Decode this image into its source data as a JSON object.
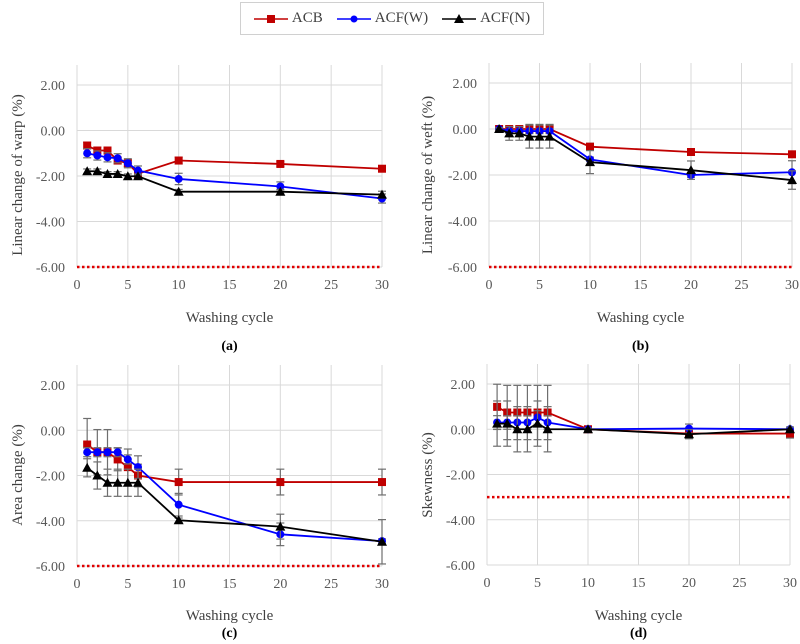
{
  "legend": [
    {
      "name": "ACB",
      "color": "#c00000",
      "marker": "square"
    },
    {
      "name": "ACF(W)",
      "color": "#0000ff",
      "marker": "circle"
    },
    {
      "name": "ACF(N)",
      "color": "#000000",
      "marker": "triangle"
    }
  ],
  "chart_data": [
    {
      "type": "line",
      "panel_label": "(a)",
      "xlabel": "Washing cycle",
      "ylabel": "Linear change of warp (%)",
      "x": [
        1,
        2,
        3,
        4,
        5,
        6,
        10,
        20,
        30
      ],
      "xlim": [
        0,
        30
      ],
      "ylim": [
        -6,
        2
      ],
      "xticks": [
        "0",
        "5",
        "10",
        "15",
        "20",
        "25",
        "30"
      ],
      "yticks": [
        "2.00",
        "0.00",
        "-2.00",
        "-4.00",
        "-6.00"
      ],
      "reference_line": -6,
      "series": [
        {
          "name": "ACB",
          "values": [
            -0.66,
            -0.88,
            -0.88,
            -1.32,
            -1.44,
            -1.9,
            -1.32,
            -1.47,
            -1.68
          ],
          "error": [
            0.15,
            0.15,
            0.15,
            0.15,
            0.15,
            0.15,
            0.15,
            0.1,
            0.1
          ]
        },
        {
          "name": "ACF(W)",
          "values": [
            -1.0,
            -1.1,
            -1.18,
            -1.22,
            -1.44,
            -1.76,
            -2.13,
            -2.46,
            -2.99
          ],
          "error": [
            0.2,
            0.2,
            0.2,
            0.2,
            0.2,
            0.2,
            0.25,
            0.2,
            0.2
          ]
        },
        {
          "name": "ACF(N)",
          "values": [
            -1.79,
            -1.79,
            -1.91,
            -1.91,
            -2.01,
            -2.01,
            -2.69,
            -2.69,
            -2.82
          ],
          "error": [
            0.1,
            0.1,
            0.1,
            0.1,
            0.1,
            0.1,
            0.1,
            0.1,
            0.15
          ]
        }
      ]
    },
    {
      "type": "line",
      "panel_label": "(b)",
      "xlabel": "Washing cycle",
      "ylabel": "Linear change of weft (%)",
      "x": [
        1,
        2,
        3,
        4,
        5,
        6,
        10,
        20,
        30
      ],
      "xlim": [
        0,
        30
      ],
      "ylim": [
        -6,
        2
      ],
      "xticks": [
        "0",
        "5",
        "10",
        "15",
        "20",
        "25",
        "30"
      ],
      "yticks": [
        "2.00",
        "0.00",
        "-2.00",
        "-4.00",
        "-6.00"
      ],
      "reference_line": -6,
      "series": [
        {
          "name": "ACB",
          "values": [
            0,
            0,
            0,
            0,
            0,
            0,
            -0.77,
            -1.0,
            -1.1
          ],
          "error": [
            0.05,
            0.1,
            0.1,
            0.2,
            0.2,
            0.2,
            0.15,
            0.05,
            0.1
          ]
        },
        {
          "name": "ACF(W)",
          "values": [
            0,
            -0.09,
            -0.09,
            -0.09,
            -0.09,
            -0.09,
            -1.32,
            -2.0,
            -1.88
          ],
          "error": [
            0.05,
            0.1,
            0.1,
            0.1,
            0.1,
            0.1,
            0.1,
            0.1,
            0.5
          ]
        },
        {
          "name": "ACF(N)",
          "values": [
            0,
            -0.19,
            -0.19,
            -0.33,
            -0.33,
            -0.33,
            -1.44,
            -1.79,
            -2.22
          ],
          "error": [
            0.05,
            0.3,
            0.3,
            0.5,
            0.5,
            0.5,
            0.5,
            0.4,
            0.4
          ]
        }
      ]
    },
    {
      "type": "line",
      "panel_label": "(c)",
      "xlabel": "Washing cycle",
      "ylabel": "Area change (%)",
      "x": [
        1,
        2,
        3,
        4,
        5,
        6,
        10,
        20,
        30
      ],
      "xlim": [
        0,
        30
      ],
      "ylim": [
        -6,
        2
      ],
      "xticks": [
        "0",
        "5",
        "10",
        "15",
        "20",
        "25",
        "30"
      ],
      "yticks": [
        "2.00",
        "0.00",
        "-2.00",
        "-4.00",
        "-6.00"
      ],
      "reference_line": -6,
      "series": [
        {
          "name": "ACB",
          "values": [
            -0.63,
            -0.97,
            -0.97,
            -1.29,
            -1.63,
            -2.0,
            -2.29,
            -2.29,
            -2.29
          ],
          "error": [
            1.15,
            1.0,
            1.0,
            0.5,
            0.8,
            0.5,
            0.57,
            0.57,
            0.57
          ]
        },
        {
          "name": "ACF(W)",
          "values": [
            -0.97,
            -0.97,
            -0.97,
            -0.97,
            -1.29,
            -1.63,
            -3.29,
            -4.6,
            -4.9
          ],
          "error": [
            0.2,
            0.2,
            0.2,
            0.2,
            0.2,
            0.5,
            0.5,
            0.5,
            0.1
          ]
        },
        {
          "name": "ACF(N)",
          "values": [
            -1.66,
            -2.0,
            -2.32,
            -2.32,
            -2.32,
            -2.32,
            -3.98,
            -4.26,
            -4.93
          ],
          "error": [
            0.4,
            0.6,
            0.6,
            0.6,
            0.6,
            0.6,
            0.1,
            0.55,
            0.98
          ]
        }
      ]
    },
    {
      "type": "line",
      "panel_label": "(d)",
      "xlabel": "Washing cycle",
      "ylabel": "Skewness (%)",
      "x": [
        1,
        2,
        3,
        4,
        5,
        6,
        10,
        20,
        30
      ],
      "xlim": [
        0,
        30
      ],
      "ylim": [
        -6,
        2
      ],
      "xticks": [
        "0",
        "5",
        "10",
        "15",
        "20",
        "25",
        "30"
      ],
      "yticks": [
        "2.00",
        "0.00",
        "-2.00",
        "-4.00",
        "-6.00"
      ],
      "reference_line": -3,
      "series": [
        {
          "name": "ACB",
          "values": [
            0.99,
            0.74,
            0.74,
            0.74,
            0.74,
            0.74,
            0,
            -0.19,
            -0.19
          ],
          "error": [
            1.0,
            1.2,
            1.2,
            1.2,
            1.2,
            1.2,
            0.05,
            0.2,
            0.2
          ]
        },
        {
          "name": "ACF(W)",
          "values": [
            0.3,
            0.3,
            0.3,
            0.3,
            0.52,
            0.3,
            0,
            0.03,
            0
          ],
          "error": [
            0.3,
            0.3,
            0.3,
            0.3,
            0.3,
            0.3,
            0.05,
            0.2,
            0.1
          ]
        },
        {
          "name": "ACF(N)",
          "values": [
            0.25,
            0.25,
            0,
            0,
            0.25,
            0,
            0,
            -0.22,
            0
          ],
          "error": [
            1.0,
            1.0,
            1.0,
            1.0,
            1.0,
            1.0,
            0.05,
            0.2,
            0.1
          ]
        }
      ]
    }
  ]
}
